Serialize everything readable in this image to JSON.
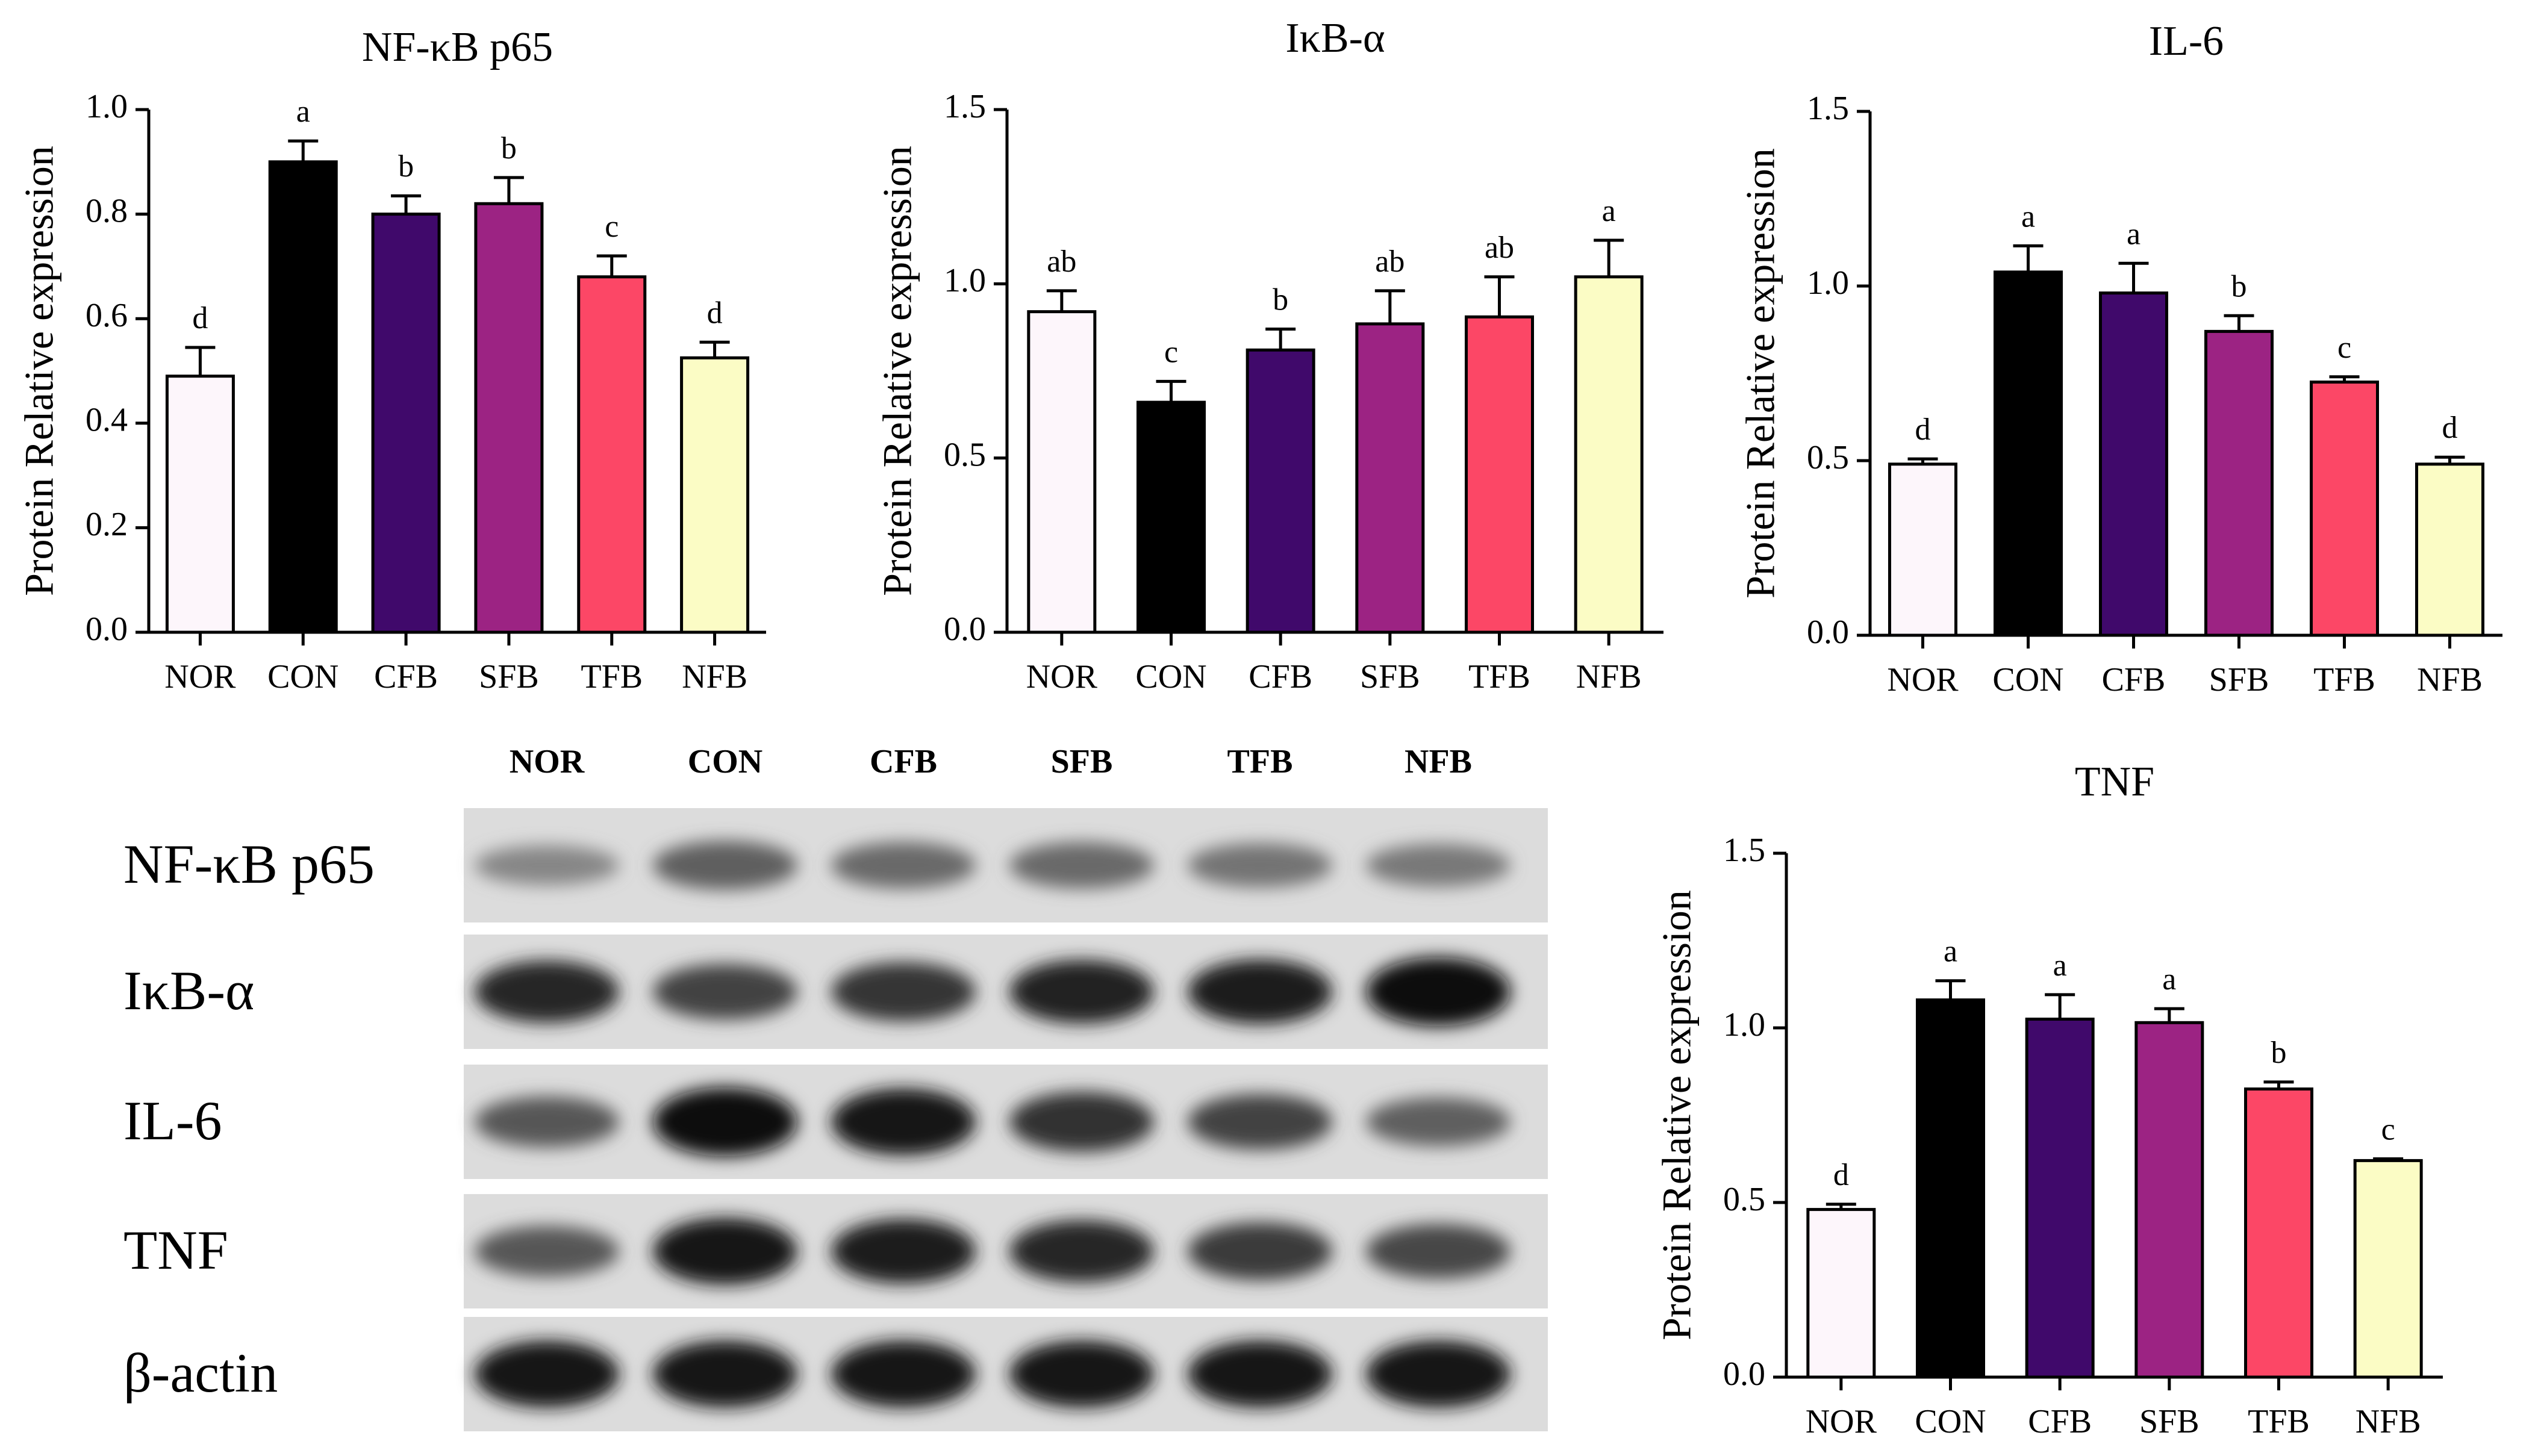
{
  "figure": {
    "western_blot": {
      "lanes": [
        "NOR",
        "CON",
        "CFB",
        "SFB",
        "TFB",
        "NFB"
      ],
      "rows": [
        {
          "label": "NF-κB p65",
          "intensities": [
            0.35,
            0.55,
            0.5,
            0.5,
            0.45,
            0.42
          ]
        },
        {
          "label": "IκB-α",
          "intensities": [
            0.85,
            0.7,
            0.78,
            0.88,
            0.9,
            1.0
          ]
        },
        {
          "label": "IL-6",
          "intensities": [
            0.6,
            1.0,
            0.95,
            0.8,
            0.7,
            0.55
          ]
        },
        {
          "label": "TNF",
          "intensities": [
            0.6,
            0.95,
            0.9,
            0.85,
            0.75,
            0.68
          ]
        },
        {
          "label": "β-actin",
          "intensities": [
            0.95,
            0.95,
            0.95,
            0.95,
            0.95,
            0.95
          ]
        }
      ]
    }
  },
  "colors": {
    "NOR": "#fdf6fb",
    "CON": "#000000",
    "CFB": "#40096b",
    "SFB": "#9c2383",
    "TFB": "#fc4766",
    "NFB": "#fbfcc5"
  },
  "chart_data": [
    {
      "type": "bar",
      "title": "NF-κB p65",
      "ylabel": "Protein Relative expression",
      "xlabel": "",
      "categories": [
        "NOR",
        "CON",
        "CFB",
        "SFB",
        "TFB",
        "NFB"
      ],
      "values": [
        0.49,
        0.9,
        0.8,
        0.82,
        0.68,
        0.525
      ],
      "errors": [
        0.055,
        0.04,
        0.035,
        0.05,
        0.04,
        0.03
      ],
      "significance": [
        "d",
        "a",
        "b",
        "b",
        "c",
        "d"
      ],
      "ylim": [
        0,
        1.0
      ],
      "yticks": [
        "0.0",
        "0.2",
        "0.4",
        "0.6",
        "0.8",
        "1.0"
      ],
      "ytick_values": [
        0,
        0.2,
        0.4,
        0.6,
        0.8,
        1.0
      ]
    },
    {
      "type": "bar",
      "title": "IκB-α",
      "ylabel": "Protein Relative expression",
      "xlabel": "",
      "categories": [
        "NOR",
        "CON",
        "CFB",
        "SFB",
        "TFB",
        "NFB"
      ],
      "values": [
        0.92,
        0.66,
        0.81,
        0.885,
        0.905,
        1.02
      ],
      "errors": [
        0.06,
        0.06,
        0.06,
        0.095,
        0.115,
        0.105
      ],
      "significance": [
        "ab",
        "c",
        "b",
        "ab",
        "ab",
        "a"
      ],
      "ylim": [
        0,
        1.5
      ],
      "yticks": [
        "0.0",
        "0.5",
        "1.0",
        "1.5"
      ],
      "ytick_values": [
        0,
        0.5,
        1.0,
        1.5
      ]
    },
    {
      "type": "bar",
      "title": "IL-6",
      "ylabel": "Protein Relative expression",
      "xlabel": "",
      "categories": [
        "NOR",
        "CON",
        "CFB",
        "SFB",
        "TFB",
        "NFB"
      ],
      "values": [
        0.49,
        1.04,
        0.98,
        0.87,
        0.725,
        0.49
      ],
      "errors": [
        0.015,
        0.075,
        0.085,
        0.045,
        0.015,
        0.02
      ],
      "significance": [
        "d",
        "a",
        "a",
        "b",
        "c",
        "d"
      ],
      "ylim": [
        0,
        1.5
      ],
      "yticks": [
        "0.0",
        "0.5",
        "1.0",
        "1.5"
      ],
      "ytick_values": [
        0,
        0.5,
        1.0,
        1.5
      ]
    },
    {
      "type": "bar",
      "title": "TNF",
      "ylabel": "Protein Relative expression",
      "xlabel": "",
      "categories": [
        "NOR",
        "CON",
        "CFB",
        "SFB",
        "TFB",
        "NFB"
      ],
      "values": [
        0.48,
        1.08,
        1.025,
        1.015,
        0.825,
        0.62
      ],
      "errors": [
        0.015,
        0.055,
        0.07,
        0.04,
        0.02,
        0.005
      ],
      "significance": [
        "d",
        "a",
        "a",
        "a",
        "b",
        "c"
      ],
      "ylim": [
        0,
        1.5
      ],
      "yticks": [
        "0.0",
        "0.5",
        "1.0",
        "1.5"
      ],
      "ytick_values": [
        0,
        0.5,
        1.0,
        1.5
      ]
    }
  ]
}
